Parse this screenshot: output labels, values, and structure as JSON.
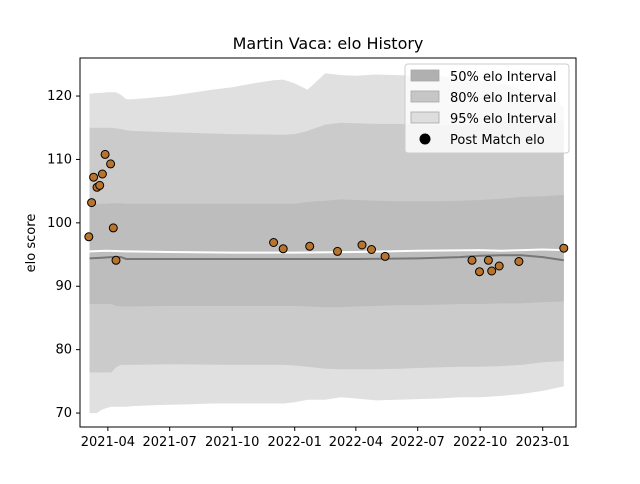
{
  "chart_data": {
    "type": "area",
    "title": "Martin Vaca: elo History",
    "xlabel": "",
    "ylabel": "elo score",
    "xlim": [
      "2021-02-19",
      "2023-02-19"
    ],
    "ylim": [
      67.8,
      126
    ],
    "x_ticks": [
      "2021-04",
      "2021-07",
      "2021-10",
      "2022-01",
      "2022-04",
      "2022-07",
      "2022-10",
      "2023-01"
    ],
    "y_ticks": [
      70,
      80,
      90,
      100,
      110,
      120
    ],
    "legend_position": "top-right",
    "bands": [
      {
        "name": "95% elo Interval",
        "color": "#e0e0e0",
        "x": [
          "2021-03-05",
          "2021-03-09",
          "2021-03-16",
          "2021-03-23",
          "2021-03-30",
          "2021-04-06",
          "2021-04-13",
          "2021-04-20",
          "2021-04-28",
          "2021-05-08",
          "2021-06-01",
          "2021-07-01",
          "2021-08-01",
          "2021-09-01",
          "2021-10-01",
          "2021-11-01",
          "2021-12-01",
          "2021-12-15",
          "2022-01-01",
          "2022-01-20",
          "2022-02-15",
          "2022-03-10",
          "2022-04-01",
          "2022-05-01",
          "2022-06-01",
          "2022-07-01",
          "2022-08-01",
          "2022-09-01",
          "2022-10-01",
          "2022-11-01",
          "2022-12-01",
          "2023-01-01",
          "2023-02-01"
        ],
        "upper": [
          120.4,
          120.4,
          120.5,
          120.5,
          120.6,
          120.6,
          120.6,
          120.2,
          119.5,
          119.5,
          119.7,
          120.0,
          120.5,
          121.0,
          121.4,
          122.0,
          122.5,
          122.6,
          122.0,
          121.0,
          123.6,
          123.3,
          123.2,
          123.4,
          123.3,
          123.2,
          123.2,
          122.8,
          122.5,
          122.0,
          121.0,
          120.0,
          118.3
        ],
        "lower": [
          70.0,
          70.0,
          70.0,
          70.5,
          70.8,
          71.0,
          71.0,
          71.0,
          71.0,
          71.1,
          71.2,
          71.3,
          71.4,
          71.5,
          71.5,
          71.5,
          71.5,
          71.5,
          71.7,
          72.1,
          72.1,
          72.5,
          72.3,
          72.0,
          72.1,
          72.2,
          72.3,
          72.5,
          72.5,
          72.7,
          73.0,
          73.5,
          74.2
        ]
      },
      {
        "name": "80% elo Interval",
        "color": "#cbcbcb",
        "x": [
          "2021-03-05",
          "2021-03-30",
          "2021-04-06",
          "2021-04-13",
          "2021-04-20",
          "2021-04-28",
          "2021-05-08",
          "2021-07-01",
          "2021-10-01",
          "2021-12-15",
          "2022-01-01",
          "2022-01-20",
          "2022-02-15",
          "2022-03-10",
          "2022-04-01",
          "2022-05-01",
          "2022-06-01",
          "2022-07-01",
          "2022-08-01",
          "2022-09-01",
          "2022-10-01",
          "2022-11-01",
          "2022-12-01",
          "2023-01-01",
          "2023-02-01"
        ],
        "upper": [
          115.0,
          115.0,
          115.0,
          114.9,
          114.8,
          114.6,
          114.5,
          114.3,
          114.0,
          113.9,
          114.0,
          114.5,
          115.5,
          115.8,
          115.7,
          115.6,
          115.6,
          115.5,
          115.4,
          115.5,
          115.6,
          115.8,
          116.0,
          116.1,
          116.1
        ],
        "lower": [
          76.4,
          76.4,
          76.4,
          77.2,
          77.6,
          77.6,
          77.6,
          77.7,
          77.6,
          77.6,
          77.5,
          77.3,
          77.0,
          76.9,
          76.9,
          76.9,
          77.0,
          77.1,
          77.2,
          77.3,
          77.3,
          77.4,
          77.6,
          78.0,
          78.2
        ]
      },
      {
        "name": "50% elo Interval",
        "color": "#bdbdbd",
        "x": [
          "2021-03-05",
          "2021-03-30",
          "2021-04-06",
          "2021-04-13",
          "2021-04-20",
          "2021-04-28",
          "2021-05-08",
          "2021-07-01",
          "2021-10-01",
          "2022-01-01",
          "2022-01-20",
          "2022-02-15",
          "2022-03-10",
          "2022-04-01",
          "2022-05-01",
          "2022-06-01",
          "2022-07-01",
          "2022-08-01",
          "2022-09-01",
          "2022-10-01",
          "2022-11-01",
          "2022-12-01",
          "2023-01-01",
          "2023-02-01"
        ],
        "upper": [
          103.0,
          103.0,
          103.1,
          103.1,
          103.1,
          103.0,
          103.0,
          103.0,
          103.0,
          103.0,
          103.3,
          103.5,
          103.7,
          103.6,
          103.5,
          103.4,
          103.4,
          103.4,
          103.5,
          103.6,
          103.8,
          104.1,
          104.2,
          104.4
        ],
        "lower": [
          87.2,
          87.2,
          87.2,
          86.9,
          86.8,
          86.8,
          86.8,
          86.9,
          86.9,
          86.9,
          86.8,
          86.7,
          86.7,
          86.8,
          86.9,
          87.0,
          87.0,
          87.1,
          87.2,
          87.2,
          87.3,
          87.3,
          87.5,
          87.6
        ]
      }
    ],
    "lines": [
      {
        "role": "expected",
        "color": "#ffffff",
        "x": [
          "2021-03-05",
          "2021-03-30",
          "2021-04-28",
          "2021-07-01",
          "2021-10-01",
          "2022-01-01",
          "2022-04-01",
          "2022-07-01",
          "2022-10-01",
          "2022-11-01",
          "2022-12-01",
          "2023-01-01",
          "2023-02-01"
        ],
        "values": [
          95.5,
          95.6,
          95.5,
          95.4,
          95.3,
          95.3,
          95.4,
          95.6,
          95.7,
          95.6,
          95.7,
          95.8,
          95.7
        ]
      },
      {
        "role": "median",
        "color": "#777777",
        "x": [
          "2021-03-05",
          "2021-03-23",
          "2021-04-06",
          "2021-04-20",
          "2021-04-28",
          "2021-07-01",
          "2021-10-01",
          "2022-01-01",
          "2022-04-01",
          "2022-07-01",
          "2022-09-01",
          "2022-10-01",
          "2022-11-01",
          "2022-12-01",
          "2023-01-01",
          "2023-02-01"
        ],
        "values": [
          94.4,
          94.5,
          94.6,
          94.6,
          94.3,
          94.3,
          94.3,
          94.3,
          94.3,
          94.4,
          94.6,
          94.8,
          94.9,
          94.9,
          94.6,
          94.1
        ]
      }
    ],
    "matches": {
      "name": "Post Match elo",
      "color": "#b8742c",
      "edge_color": "#000000",
      "points": [
        {
          "x": "2021-03-04",
          "y": 97.8
        },
        {
          "x": "2021-03-08",
          "y": 103.2
        },
        {
          "x": "2021-03-11",
          "y": 107.2
        },
        {
          "x": "2021-03-16",
          "y": 105.6
        },
        {
          "x": "2021-03-20",
          "y": 105.9
        },
        {
          "x": "2021-03-24",
          "y": 107.7
        },
        {
          "x": "2021-03-28",
          "y": 110.8
        },
        {
          "x": "2021-04-05",
          "y": 109.3
        },
        {
          "x": "2021-04-09",
          "y": 99.2
        },
        {
          "x": "2021-04-13",
          "y": 94.1
        },
        {
          "x": "2021-12-01",
          "y": 96.9
        },
        {
          "x": "2021-12-15",
          "y": 95.9
        },
        {
          "x": "2022-01-23",
          "y": 96.3
        },
        {
          "x": "2022-03-05",
          "y": 95.5
        },
        {
          "x": "2022-04-10",
          "y": 96.5
        },
        {
          "x": "2022-04-24",
          "y": 95.8
        },
        {
          "x": "2022-05-14",
          "y": 94.7
        },
        {
          "x": "2022-09-19",
          "y": 94.1
        },
        {
          "x": "2022-09-30",
          "y": 92.3
        },
        {
          "x": "2022-10-13",
          "y": 94.1
        },
        {
          "x": "2022-10-18",
          "y": 92.4
        },
        {
          "x": "2022-10-29",
          "y": 93.2
        },
        {
          "x": "2022-11-27",
          "y": 93.9
        },
        {
          "x": "2023-02-01",
          "y": 96.0
        }
      ]
    }
  }
}
